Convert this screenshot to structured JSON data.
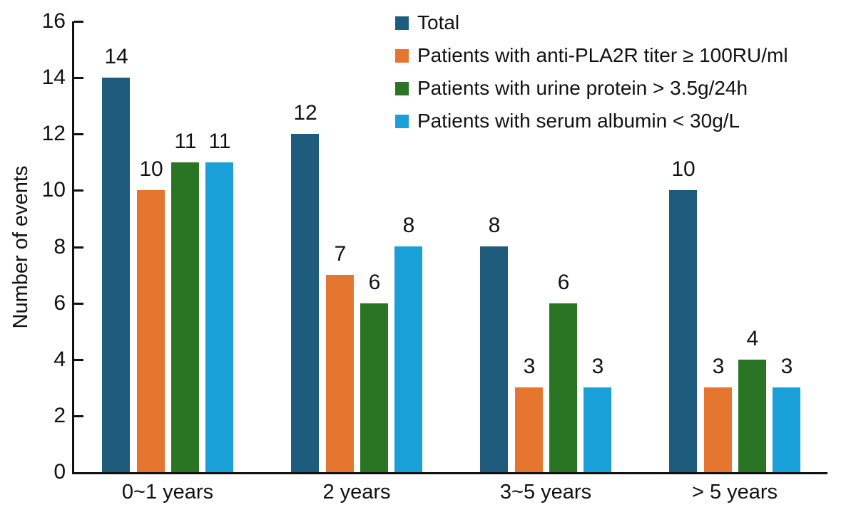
{
  "chart_data": {
    "type": "bar",
    "categories": [
      "0~1 years",
      "2 years",
      "3~5 years",
      "> 5 years"
    ],
    "series": [
      {
        "name": "Total",
        "color": "#1e5b7d",
        "values": [
          14,
          12,
          8,
          10
        ]
      },
      {
        "name": "Patients with anti-PLA2R titer ≥ 100RU/ml",
        "color": "#e5762f",
        "values": [
          10,
          7,
          3,
          3
        ]
      },
      {
        "name": "Patients with urine protein > 3.5g/24h",
        "color": "#2a7523",
        "values": [
          11,
          6,
          6,
          4
        ]
      },
      {
        "name": "Patients with serum albumin < 30g/L",
        "color": "#1aa0d8",
        "values": [
          11,
          8,
          3,
          3
        ]
      }
    ],
    "xlabel": "",
    "ylabel": "Number of events",
    "ylim": [
      0,
      16
    ],
    "yticks": [
      0,
      2,
      4,
      6,
      8,
      10,
      12,
      14,
      16
    ],
    "value_labels": true,
    "grid": false,
    "legend_position": "top-right",
    "axis_color": "#111111",
    "background": "#ffffff"
  }
}
